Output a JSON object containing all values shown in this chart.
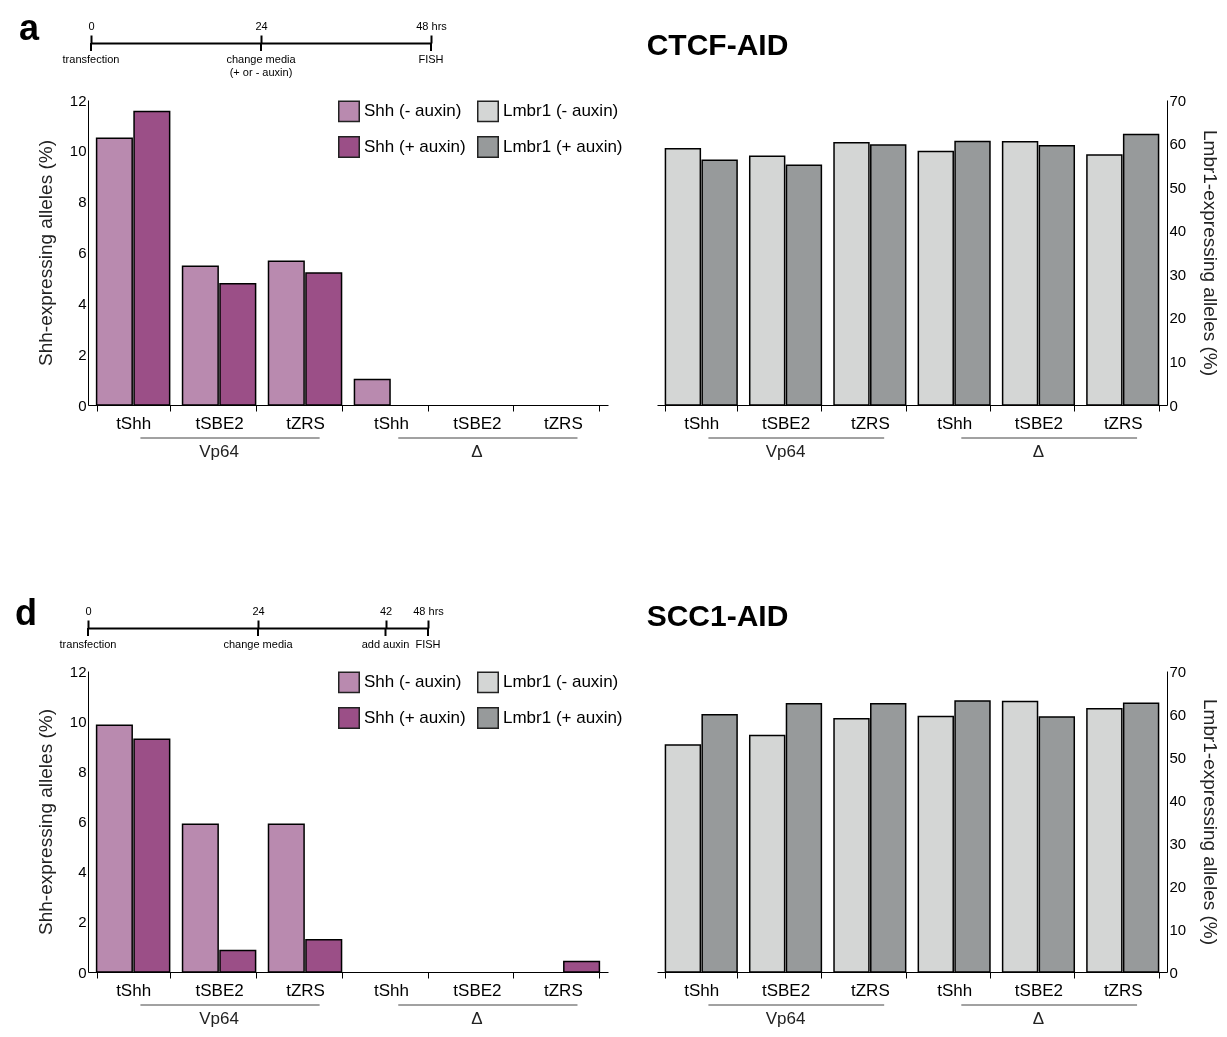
{
  "chart_data": [
    {
      "type": "other",
      "categories": [
        "0",
        "24",
        "48 hrs"
      ],
      "annotations": [
        "a",
        {
          "text": "transfection",
          "x": "0"
        },
        {
          "text": "change media\n(+ or - auxin)",
          "x": "24"
        },
        {
          "text": "FISH",
          "x": "48 hrs"
        }
      ]
    },
    {
      "type": "bar",
      "title": "CTCF-AID",
      "ylabel": "Shh-expressing alleles (%)",
      "y2label": "Lmbr1-expressing alleles (%)",
      "categories": [
        "tShh",
        "tSBE2",
        "tZRS",
        "tShh",
        "tSBE2",
        "tZRS",
        "tShh",
        "tSBE2",
        "tZRS",
        "tShh",
        "tSBE2",
        "tZRS"
      ],
      "series": [
        {
          "name": "Shh (- auxin)",
          "color": "#b98aaf",
          "values": [
            10.5,
            5.46,
            5.66,
            1.0,
            0,
            0,
            null,
            null,
            null,
            null,
            null,
            null
          ]
        },
        {
          "name": "Shh (+ auxin)",
          "color": "#9b4f87",
          "values": [
            11.55,
            4.77,
            5.19,
            0,
            0,
            0,
            null,
            null,
            null,
            null,
            null,
            null
          ]
        },
        {
          "name": "Lmbr1 (- auxin)",
          "color": "#d4d6d5",
          "axis": "y2",
          "values": [
            null,
            null,
            null,
            null,
            null,
            null,
            58.8,
            57.1,
            60.2,
            58.2,
            60.4,
            57.4
          ]
        },
        {
          "name": "Lmbr1 (+ auxin)",
          "color": "#979a9b",
          "axis": "y2",
          "values": [
            null,
            null,
            null,
            null,
            null,
            null,
            56.2,
            55.0,
            59.7,
            60.5,
            59.5,
            62.1
          ]
        }
      ],
      "ylim": [
        0,
        12
      ],
      "yticks": [
        0,
        2,
        4,
        6,
        8,
        10,
        12
      ],
      "y2lim": [
        0,
        70
      ],
      "y2ticks": [
        0,
        10,
        20,
        30,
        40,
        50,
        60,
        70
      ],
      "legend": "top",
      "annotations": [
        "Vp64",
        "Δ",
        "Vp64",
        "Δ"
      ]
    },
    {
      "type": "other",
      "categories": [
        "0",
        null,
        null,
        null,
        "24",
        null,
        null,
        "42",
        "48 hrs"
      ],
      "annotations": [
        "d",
        {
          "text": "transfection",
          "x": "0"
        },
        {
          "text": "change media",
          "x": "24"
        },
        {
          "text": "add auxin",
          "x": "42"
        },
        {
          "text": "FISH",
          "x": "48 hrs"
        }
      ]
    },
    {
      "type": "bar",
      "title": "SCC1-AID",
      "ylabel": "Shh-expressing alleles (%)",
      "y2label": "Lmbr1-expressing alleles (%)",
      "categories": [
        "tShh",
        "tSBE2",
        "tZRS",
        "tShh",
        "tSBE2",
        "tZRS",
        "tShh",
        "tSBE2",
        "tZRS",
        "tShh",
        "tSBE2",
        "tZRS"
      ],
      "series": [
        {
          "name": "Shh (- auxin)",
          "color": "#b98aaf",
          "values": [
            9.84,
            5.89,
            5.89,
            0,
            0,
            0,
            null,
            null,
            null,
            null,
            null,
            null
          ]
        },
        {
          "name": "Shh (+ auxin)",
          "color": "#9b4f87",
          "values": [
            9.28,
            0.86,
            1.29,
            0,
            0,
            0.42,
            null,
            null,
            null,
            null,
            null,
            null
          ]
        },
        {
          "name": "Lmbr1 (- auxin)",
          "color": "#d4d6d5",
          "axis": "y2",
          "values": [
            null,
            null,
            null,
            null,
            null,
            null,
            52.8,
            55.0,
            58.9,
            59.4,
            62.9,
            61.2
          ]
        },
        {
          "name": "Lmbr1 (+ auxin)",
          "color": "#979a9b",
          "axis": "y2",
          "values": [
            null,
            null,
            null,
            null,
            null,
            null,
            59.8,
            62.4,
            62.4,
            63.0,
            59.3,
            62.5
          ]
        }
      ],
      "ylim": [
        0,
        12
      ],
      "yticks": [
        0,
        2,
        4,
        6,
        8,
        10,
        12
      ],
      "y2lim": [
        0,
        70
      ],
      "y2ticks": [
        0,
        10,
        20,
        30,
        40,
        50,
        60,
        70
      ],
      "legend": "top",
      "annotations": [
        "Vp64",
        "Δ",
        "Vp64",
        "Δ"
      ]
    }
  ]
}
